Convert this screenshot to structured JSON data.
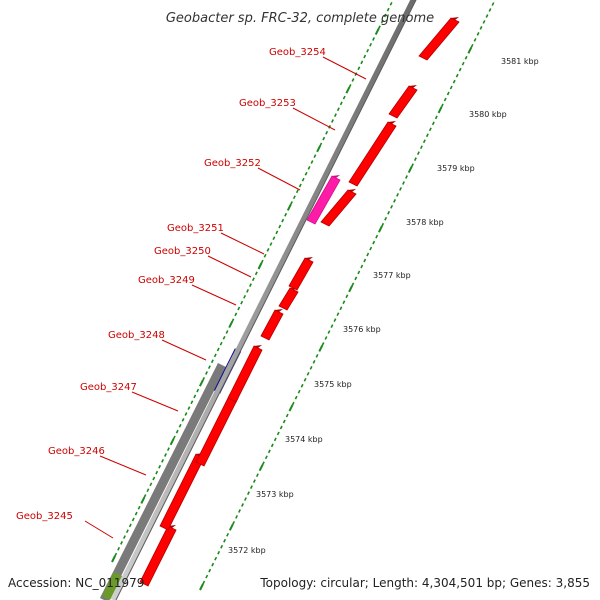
{
  "title": "Geobacter sp. FRC-32, complete genome",
  "footer": {
    "accession": "Accession: NC_011979",
    "summary": "Topology: circular; Length: 4,304,501 bp; Genes: 3,855"
  },
  "genes": [
    {
      "name": "Geob_3245",
      "color": "#ff0000",
      "strand": "plus"
    },
    {
      "name": "Geob_3246",
      "color": "#ff0000",
      "strand": "plus"
    },
    {
      "name": "Geob_3247",
      "color": "#ff0000",
      "strand": "plus"
    },
    {
      "name": "Geob_3248",
      "color": "#ff0000",
      "strand": "plus"
    },
    {
      "name": "Geob_3249",
      "color": "#ff0000",
      "strand": "plus"
    },
    {
      "name": "Geob_3250",
      "color": "#ff0000",
      "strand": "plus"
    },
    {
      "name": "Geob_3251",
      "color": "#ff0000",
      "strand": "plus"
    },
    {
      "name": "Geob_3252",
      "color": "#ff1aa8",
      "strand": "minus"
    },
    {
      "name": "Geob_3253",
      "color": "#ff0000",
      "strand": "plus"
    },
    {
      "name": "Geob_3254",
      "color": "#ff0000",
      "strand": "plus"
    }
  ],
  "kbp_ticks": [
    "3572 kbp",
    "3573 kbp",
    "3574 kbp",
    "3575 kbp",
    "3576 kbp",
    "3577 kbp",
    "3578 kbp",
    "3579 kbp",
    "3580 kbp",
    "3581 kbp"
  ],
  "colors": {
    "backbone": "#8a8a8a",
    "gc_track": "#7a7a7a",
    "at_marker": "#0a0a8a",
    "tick_green": "#1a8a1a",
    "gene_label": "#cc0000"
  }
}
